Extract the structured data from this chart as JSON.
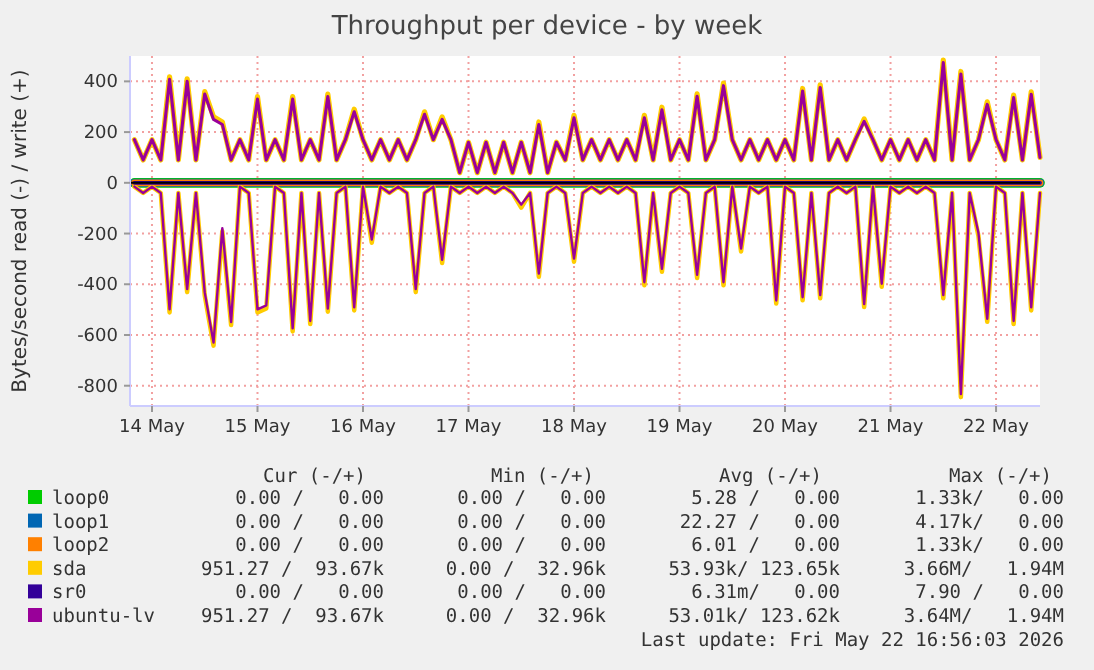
{
  "chart_data": {
    "type": "line",
    "title": "Throughput per device - by week",
    "ylabel": "Bytes/second read (-) / write (+)",
    "x": [
      "2026-05-13T20:00",
      "2026-05-13T22:00",
      "2026-05-14T00:00",
      "2026-05-14T02:00",
      "2026-05-14T04:00",
      "2026-05-14T06:00",
      "2026-05-14T08:00",
      "2026-05-14T10:00",
      "2026-05-14T12:00",
      "2026-05-14T14:00",
      "2026-05-14T16:00",
      "2026-05-14T18:00",
      "2026-05-14T20:00",
      "2026-05-14T22:00",
      "2026-05-15T00:00",
      "2026-05-15T02:00",
      "2026-05-15T04:00",
      "2026-05-15T06:00",
      "2026-05-15T08:00",
      "2026-05-15T10:00",
      "2026-05-15T12:00",
      "2026-05-15T14:00",
      "2026-05-15T16:00",
      "2026-05-15T18:00",
      "2026-05-15T20:00",
      "2026-05-15T22:00",
      "2026-05-16T00:00",
      "2026-05-16T02:00",
      "2026-05-16T04:00",
      "2026-05-16T06:00",
      "2026-05-16T08:00",
      "2026-05-16T10:00",
      "2026-05-16T12:00",
      "2026-05-16T14:00",
      "2026-05-16T16:00",
      "2026-05-16T18:00",
      "2026-05-16T20:00",
      "2026-05-16T22:00",
      "2026-05-17T00:00",
      "2026-05-17T02:00",
      "2026-05-17T04:00",
      "2026-05-17T06:00",
      "2026-05-17T08:00",
      "2026-05-17T10:00",
      "2026-05-17T12:00",
      "2026-05-17T14:00",
      "2026-05-17T16:00",
      "2026-05-17T18:00",
      "2026-05-17T20:00",
      "2026-05-17T22:00",
      "2026-05-18T00:00",
      "2026-05-18T02:00",
      "2026-05-18T04:00",
      "2026-05-18T06:00",
      "2026-05-18T08:00",
      "2026-05-18T10:00",
      "2026-05-18T12:00",
      "2026-05-18T14:00",
      "2026-05-18T16:00",
      "2026-05-18T18:00",
      "2026-05-18T20:00",
      "2026-05-18T22:00",
      "2026-05-19T00:00",
      "2026-05-19T02:00",
      "2026-05-19T04:00",
      "2026-05-19T06:00",
      "2026-05-19T08:00",
      "2026-05-19T10:00",
      "2026-05-19T12:00",
      "2026-05-19T14:00",
      "2026-05-19T16:00",
      "2026-05-19T18:00",
      "2026-05-19T20:00",
      "2026-05-19T22:00",
      "2026-05-20T00:00",
      "2026-05-20T02:00",
      "2026-05-20T04:00",
      "2026-05-20T06:00",
      "2026-05-20T08:00",
      "2026-05-20T10:00",
      "2026-05-20T12:00",
      "2026-05-20T14:00",
      "2026-05-20T16:00",
      "2026-05-20T18:00",
      "2026-05-20T20:00",
      "2026-05-20T22:00",
      "2026-05-21T00:00",
      "2026-05-21T02:00",
      "2026-05-21T04:00",
      "2026-05-21T06:00",
      "2026-05-21T08:00",
      "2026-05-21T10:00",
      "2026-05-21T12:00",
      "2026-05-21T14:00",
      "2026-05-21T16:00",
      "2026-05-21T18:00",
      "2026-05-21T20:00",
      "2026-05-21T22:00",
      "2026-05-22T00:00",
      "2026-05-22T02:00",
      "2026-05-22T04:00",
      "2026-05-22T06:00",
      "2026-05-22T08:00",
      "2026-05-22T10:00"
    ],
    "series": [
      {
        "name": "loop0",
        "color": "#00cc00",
        "x": [
          "2026-05-13T20:00",
          "2026-05-22T10:00"
        ],
        "values": [
          0,
          0
        ]
      },
      {
        "name": "loop1",
        "color": "#0066b3",
        "x": [
          "2026-05-13T20:00",
          "2026-05-22T10:00"
        ],
        "values": [
          0,
          0
        ]
      },
      {
        "name": "loop2",
        "color": "#ff8000",
        "x": [
          "2026-05-13T20:00",
          "2026-05-22T10:00"
        ],
        "values": [
          0,
          0
        ]
      },
      {
        "name": "sda",
        "color": "#ffcc00",
        "values": [
          170,
          90,
          170,
          90,
          418,
          90,
          410,
          90,
          360,
          260,
          240,
          90,
          170,
          90,
          340,
          90,
          170,
          90,
          340,
          90,
          170,
          90,
          350,
          90,
          170,
          290,
          170,
          90,
          170,
          90,
          170,
          90,
          170,
          280,
          170,
          260,
          170,
          40,
          160,
          40,
          160,
          40,
          160,
          40,
          160,
          40,
          240,
          40,
          160,
          90,
          266,
          90,
          170,
          90,
          170,
          90,
          170,
          90,
          266,
          90,
          298,
          90,
          170,
          90,
          351,
          90,
          170,
          393,
          170,
          90,
          170,
          90,
          170,
          90,
          170,
          90,
          372,
          90,
          386,
          90,
          170,
          90,
          170,
          252,
          170,
          90,
          170,
          90,
          170,
          90,
          170,
          90,
          484,
          90,
          439,
          90,
          170,
          319,
          170,
          90,
          346,
          90,
          359,
          100
        ]
      },
      {
        "color": "#ffcc00",
        "values": [
          -15,
          -40,
          -15,
          -40,
          -511,
          -40,
          -431,
          -40,
          -444,
          -642,
          -191,
          -561,
          -15,
          -40,
          -511,
          -495,
          -15,
          -40,
          -586,
          -40,
          -557,
          -40,
          -508,
          -40,
          -15,
          -503,
          -15,
          -236,
          -15,
          -40,
          -15,
          -40,
          -431,
          -40,
          -15,
          -316,
          -15,
          -40,
          -15,
          -40,
          -15,
          -40,
          -15,
          -40,
          -98,
          -40,
          -370,
          -40,
          -15,
          -40,
          -311,
          -40,
          -15,
          -40,
          -15,
          -40,
          -15,
          -40,
          -404,
          -40,
          -351,
          -40,
          -15,
          -40,
          -375,
          -40,
          -15,
          -404,
          -15,
          -271,
          -15,
          -40,
          -15,
          -476,
          -15,
          -40,
          -463,
          -40,
          -455,
          -40,
          -15,
          -40,
          -15,
          -490,
          -15,
          -410,
          -15,
          -40,
          -15,
          -40,
          -15,
          -40,
          -455,
          -40,
          -845,
          -40,
          -210,
          -548,
          -15,
          -40,
          -557,
          -40,
          -503,
          -40
        ]
      },
      {
        "name": "sr0",
        "color": "#330099",
        "x": [
          "2026-05-13T20:00",
          "2026-05-22T10:00"
        ],
        "values": [
          0,
          0
        ]
      },
      {
        "name": "ubuntu-lv",
        "color": "#990099",
        "values": [
          170,
          90,
          170,
          90,
          408,
          90,
          400,
          90,
          350,
          250,
          230,
          90,
          170,
          90,
          330,
          90,
          170,
          90,
          330,
          90,
          170,
          90,
          340,
          90,
          170,
          280,
          170,
          90,
          170,
          90,
          170,
          90,
          170,
          270,
          170,
          250,
          170,
          40,
          160,
          40,
          160,
          40,
          160,
          40,
          160,
          40,
          230,
          40,
          160,
          90,
          256,
          90,
          170,
          90,
          170,
          90,
          170,
          90,
          256,
          90,
          288,
          90,
          170,
          90,
          341,
          90,
          170,
          383,
          170,
          90,
          170,
          90,
          170,
          90,
          170,
          90,
          362,
          90,
          376,
          90,
          170,
          90,
          170,
          242,
          170,
          90,
          170,
          90,
          170,
          90,
          170,
          90,
          474,
          90,
          429,
          90,
          170,
          309,
          170,
          90,
          336,
          90,
          349,
          100
        ]
      },
      {
        "color": "#990099",
        "values": [
          -15,
          -40,
          -15,
          -40,
          -499,
          -40,
          -419,
          -40,
          -432,
          -630,
          -179,
          -549,
          -15,
          -40,
          -499,
          -483,
          -15,
          -40,
          -574,
          -40,
          -545,
          -40,
          -496,
          -40,
          -15,
          -491,
          -15,
          -224,
          -15,
          -40,
          -15,
          -40,
          -419,
          -40,
          -15,
          -304,
          -15,
          -40,
          -15,
          -40,
          -15,
          -40,
          -15,
          -40,
          -86,
          -40,
          -358,
          -40,
          -15,
          -40,
          -299,
          -40,
          -15,
          -40,
          -15,
          -40,
          -15,
          -40,
          -392,
          -40,
          -339,
          -40,
          -15,
          -40,
          -363,
          -40,
          -15,
          -392,
          -15,
          -259,
          -15,
          -40,
          -15,
          -464,
          -15,
          -40,
          -451,
          -40,
          -443,
          -40,
          -15,
          -40,
          -15,
          -478,
          -15,
          -398,
          -15,
          -40,
          -15,
          -40,
          -15,
          -40,
          -443,
          -40,
          -833,
          -40,
          -198,
          -536,
          -15,
          -40,
          -545,
          -40,
          -491,
          -40
        ]
      }
    ],
    "xlim": [
      "2026-05-13T19:00",
      "2026-05-22T10:00"
    ],
    "xticks": [
      {
        "value": "2026-05-14",
        "label": "14 May"
      },
      {
        "value": "2026-05-15",
        "label": "15 May"
      },
      {
        "value": "2026-05-16",
        "label": "16 May"
      },
      {
        "value": "2026-05-17",
        "label": "17 May"
      },
      {
        "value": "2026-05-18",
        "label": "18 May"
      },
      {
        "value": "2026-05-19",
        "label": "19 May"
      },
      {
        "value": "2026-05-20",
        "label": "20 May"
      },
      {
        "value": "2026-05-21",
        "label": "21 May"
      },
      {
        "value": "2026-05-22",
        "label": "22 May"
      }
    ],
    "ylim": [
      -880,
      500
    ],
    "yticks": [
      400,
      200,
      0,
      -200,
      -400,
      -600,
      -800
    ],
    "grid": true,
    "legend": "bottom",
    "marker": "none",
    "line_style": "solid",
    "ref_lines": [
      {
        "axis": "y",
        "value": 0,
        "color": "#000000"
      }
    ],
    "annotations": [
      "Cur (-/+)",
      "Min (-/+)",
      "Avg (-/+)",
      "Max (-/+)",
      "0.00 /   0.00",
      "0.00 /   0.00",
      "5.28 /   0.00",
      "1.33k/   0.00",
      "0.00 /   0.00",
      "0.00 /   0.00",
      "22.27 /   0.00",
      "4.17k/   0.00",
      "0.00 /   0.00",
      "0.00 /   0.00",
      "6.01 /   0.00",
      "1.33k/   0.00",
      "951.27 /  93.67k",
      "0.00 /  32.96k",
      "53.93k/ 123.65k",
      "3.66M/   1.94M",
      "0.00 /   0.00",
      "0.00 /   0.00",
      "6.31m/   0.00",
      "7.90 /   0.00",
      "951.27 /  93.67k",
      "0.00 /  32.96k",
      "53.01k/ 123.62k",
      "3.64M/   1.94M",
      "Last update: Fri May 22 16:56:03 2026"
    ]
  }
}
